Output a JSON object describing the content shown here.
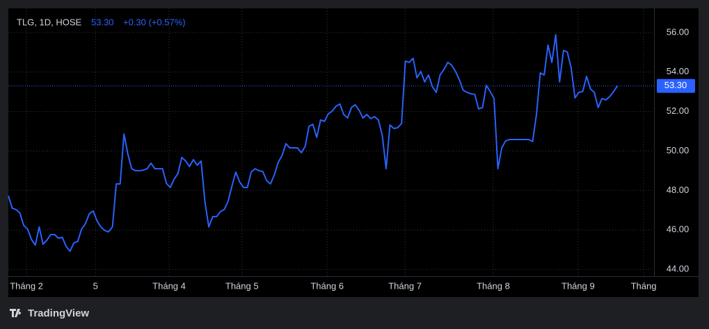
{
  "chart_data": {
    "type": "line",
    "header": {
      "symbol": "TLG, 1D, HOSE",
      "change": "+0.30 (+0.57%)"
    },
    "last_price": {
      "value": 53.3,
      "label": "53.30"
    },
    "color": "#2962ff",
    "values": [
      47.73,
      47.1,
      47.03,
      46.85,
      46.22,
      46.04,
      45.51,
      45.23,
      46.15,
      45.27,
      45.48,
      45.76,
      45.76,
      45.58,
      45.62,
      45.16,
      44.92,
      45.34,
      45.41,
      46.04,
      46.32,
      46.82,
      46.96,
      46.46,
      46.15,
      45.97,
      45.9,
      46.15,
      48.33,
      48.33,
      50.86,
      49.84,
      49.1,
      49.0,
      49.0,
      49.03,
      49.1,
      49.38,
      49.1,
      49.1,
      49.1,
      48.36,
      48.15,
      48.57,
      48.86,
      49.67,
      49.49,
      49.21,
      49.56,
      49.28,
      49.49,
      47.41,
      46.15,
      46.67,
      46.67,
      46.92,
      47.03,
      47.45,
      48.22,
      48.93,
      48.43,
      48.15,
      48.15,
      48.93,
      49.1,
      49.0,
      48.96,
      48.5,
      48.33,
      48.79,
      49.42,
      49.77,
      50.37,
      50.16,
      50.16,
      50.16,
      49.91,
      50.23,
      51.25,
      51.35,
      50.69,
      51.57,
      51.5,
      51.88,
      52.02,
      52.27,
      52.38,
      51.85,
      51.67,
      52.2,
      52.34,
      52.06,
      51.67,
      51.85,
      51.64,
      51.74,
      51.57,
      50.79,
      49.1,
      51.32,
      51.14,
      51.18,
      51.39,
      54.56,
      54.49,
      54.7,
      53.71,
      54.03,
      53.5,
      53.85,
      53.26,
      52.97,
      53.85,
      54.13,
      54.49,
      54.35,
      54.03,
      53.61,
      53.08,
      52.97,
      52.9,
      52.87,
      52.13,
      52.2,
      53.33,
      53.01,
      52.66,
      49.1,
      50.16,
      50.51,
      50.58,
      50.58,
      50.58,
      50.58,
      50.58,
      50.58,
      50.48,
      51.85,
      53.96,
      53.85,
      55.37,
      54.49,
      55.89,
      53.5,
      55.09,
      55.02,
      54.21,
      52.69,
      52.97,
      53.01,
      53.78,
      53.15,
      52.97,
      52.2,
      52.66,
      52.59,
      52.76,
      53.01,
      53.3
    ],
    "xlim": [
      0,
      167.5
    ],
    "xticks": [
      {
        "value": 4.7,
        "label": "Tháng 2"
      },
      {
        "value": 22.6,
        "label": "5"
      },
      {
        "value": 41.7,
        "label": "Tháng 4"
      },
      {
        "value": 60.6,
        "label": "Tháng 5"
      },
      {
        "value": 82.7,
        "label": "Tháng 6"
      },
      {
        "value": 102.9,
        "label": "Tháng 7"
      },
      {
        "value": 125.8,
        "label": "Tháng 8"
      },
      {
        "value": 147.8,
        "label": "Tháng 9"
      },
      {
        "value": 164.8,
        "label": "Tháng"
      }
    ],
    "ylim": [
      43.65,
      57.23
    ],
    "yticks": [
      {
        "value": 44,
        "label": "44.00"
      },
      {
        "value": 46,
        "label": "46.00"
      },
      {
        "value": 48,
        "label": "48.00"
      },
      {
        "value": 50,
        "label": "50.00"
      },
      {
        "value": 52,
        "label": "52.00"
      },
      {
        "value": 54,
        "label": "54.00"
      },
      {
        "value": 56,
        "label": "56.00"
      }
    ],
    "grid": true,
    "brand": "TradingView"
  }
}
